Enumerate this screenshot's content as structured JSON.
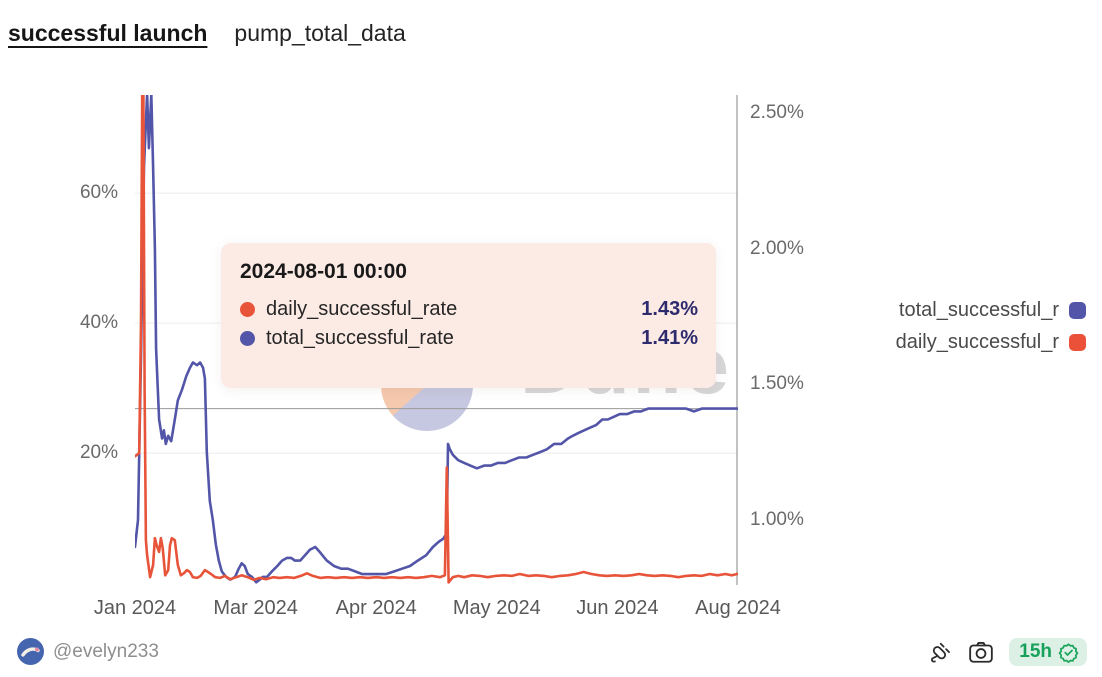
{
  "header": {
    "title": "successful launch",
    "subtitle": "pump_total_data"
  },
  "tooltip": {
    "title": "2024-08-01 00:00",
    "rows": [
      {
        "label": "daily_successful_rate",
        "value": "1.43%",
        "color": "#e8543a"
      },
      {
        "label": "total_successful_rate",
        "value": "1.41%",
        "color": "#5356a8"
      }
    ]
  },
  "legend": {
    "items": [
      {
        "label": "total_successful_r",
        "color": "#5356a8"
      },
      {
        "label": "daily_successful_r",
        "color": "#ea5138"
      }
    ]
  },
  "watermark": {
    "text": "Dune"
  },
  "footer": {
    "username": "@evelyn233",
    "timer": "15h"
  },
  "chart_data": {
    "type": "line",
    "title": "successful launch — pump_total_data",
    "x_axis": {
      "ticks": [
        {
          "t": 0.0,
          "label": "Jan 2024"
        },
        {
          "t": 0.2,
          "label": "Mar 2024"
        },
        {
          "t": 0.4,
          "label": "Apr 2024"
        },
        {
          "t": 0.6,
          "label": "May 2024"
        },
        {
          "t": 0.8,
          "label": "Jun 2024"
        },
        {
          "t": 1.0,
          "label": "Aug 2024"
        }
      ]
    },
    "axes": {
      "left": {
        "range": [
          -0.3,
          75.1
        ],
        "ticks": [
          {
            "v": 20,
            "label": "20%"
          },
          {
            "v": 40,
            "label": "40%"
          },
          {
            "v": 60,
            "label": "60%"
          }
        ],
        "gridlines": [
          20,
          40,
          60
        ]
      },
      "right": {
        "range": [
          0.76,
          2.566
        ],
        "ticks": [
          {
            "v": 2.5,
            "label": "2.50%"
          },
          {
            "v": 2.0,
            "label": "2.00%"
          },
          {
            "v": 1.5,
            "label": "1.50%"
          },
          {
            "v": 1.0,
            "label": "1.00%"
          }
        ]
      }
    },
    "crosshair": {
      "t": 1.0,
      "right_value": 1.41,
      "color": "#9a9a9a"
    },
    "grid_color": "#ececec",
    "series": [
      {
        "name": "total_successful_rate",
        "axis": "right",
        "color": "#5356a8",
        "width": 2.6,
        "points": [
          [
            0.0,
            0.9
          ],
          [
            0.005,
            1.0
          ],
          [
            0.01,
            1.6
          ],
          [
            0.015,
            2.3
          ],
          [
            0.02,
            2.57
          ],
          [
            0.023,
            2.37
          ],
          [
            0.027,
            2.57
          ],
          [
            0.03,
            2.3
          ],
          [
            0.033,
            2.0
          ],
          [
            0.035,
            1.63
          ],
          [
            0.04,
            1.37
          ],
          [
            0.045,
            1.3
          ],
          [
            0.048,
            1.33
          ],
          [
            0.051,
            1.28
          ],
          [
            0.055,
            1.31
          ],
          [
            0.06,
            1.29
          ],
          [
            0.066,
            1.37
          ],
          [
            0.071,
            1.44
          ],
          [
            0.078,
            1.48
          ],
          [
            0.085,
            1.53
          ],
          [
            0.091,
            1.56
          ],
          [
            0.096,
            1.58
          ],
          [
            0.103,
            1.57
          ],
          [
            0.108,
            1.58
          ],
          [
            0.113,
            1.56
          ],
          [
            0.116,
            1.52
          ],
          [
            0.119,
            1.25
          ],
          [
            0.124,
            1.07
          ],
          [
            0.129,
            1.0
          ],
          [
            0.134,
            0.91
          ],
          [
            0.139,
            0.85
          ],
          [
            0.144,
            0.81
          ],
          [
            0.151,
            0.79
          ],
          [
            0.158,
            0.78
          ],
          [
            0.166,
            0.79
          ],
          [
            0.172,
            0.82
          ],
          [
            0.177,
            0.84
          ],
          [
            0.182,
            0.83
          ],
          [
            0.187,
            0.8
          ],
          [
            0.194,
            0.79
          ],
          [
            0.201,
            0.77
          ],
          [
            0.207,
            0.78
          ],
          [
            0.212,
            0.79
          ],
          [
            0.219,
            0.79
          ],
          [
            0.227,
            0.81
          ],
          [
            0.236,
            0.83
          ],
          [
            0.244,
            0.85
          ],
          [
            0.252,
            0.86
          ],
          [
            0.259,
            0.86
          ],
          [
            0.265,
            0.85
          ],
          [
            0.274,
            0.85
          ],
          [
            0.282,
            0.87
          ],
          [
            0.29,
            0.89
          ],
          [
            0.299,
            0.9
          ],
          [
            0.307,
            0.88
          ],
          [
            0.318,
            0.85
          ],
          [
            0.33,
            0.83
          ],
          [
            0.342,
            0.82
          ],
          [
            0.353,
            0.82
          ],
          [
            0.365,
            0.81
          ],
          [
            0.377,
            0.8
          ],
          [
            0.39,
            0.8
          ],
          [
            0.403,
            0.8
          ],
          [
            0.416,
            0.8
          ],
          [
            0.43,
            0.81
          ],
          [
            0.443,
            0.82
          ],
          [
            0.456,
            0.83
          ],
          [
            0.469,
            0.85
          ],
          [
            0.483,
            0.87
          ],
          [
            0.494,
            0.9
          ],
          [
            0.504,
            0.92
          ],
          [
            0.511,
            0.93
          ],
          [
            0.517,
            0.95
          ],
          [
            0.519,
            1.28
          ],
          [
            0.522,
            1.26
          ],
          [
            0.527,
            1.24
          ],
          [
            0.536,
            1.22
          ],
          [
            0.546,
            1.21
          ],
          [
            0.556,
            1.2
          ],
          [
            0.567,
            1.19
          ],
          [
            0.579,
            1.2
          ],
          [
            0.59,
            1.2
          ],
          [
            0.602,
            1.21
          ],
          [
            0.614,
            1.21
          ],
          [
            0.625,
            1.22
          ],
          [
            0.637,
            1.23
          ],
          [
            0.649,
            1.23
          ],
          [
            0.66,
            1.24
          ],
          [
            0.672,
            1.25
          ],
          [
            0.683,
            1.26
          ],
          [
            0.695,
            1.28
          ],
          [
            0.707,
            1.28
          ],
          [
            0.718,
            1.3
          ],
          [
            0.726,
            1.31
          ],
          [
            0.735,
            1.32
          ],
          [
            0.745,
            1.33
          ],
          [
            0.755,
            1.34
          ],
          [
            0.765,
            1.35
          ],
          [
            0.775,
            1.37
          ],
          [
            0.784,
            1.37
          ],
          [
            0.794,
            1.38
          ],
          [
            0.804,
            1.39
          ],
          [
            0.816,
            1.39
          ],
          [
            0.828,
            1.4
          ],
          [
            0.839,
            1.4
          ],
          [
            0.851,
            1.41
          ],
          [
            0.863,
            1.41
          ],
          [
            0.874,
            1.41
          ],
          [
            0.887,
            1.41
          ],
          [
            0.901,
            1.41
          ],
          [
            0.914,
            1.41
          ],
          [
            0.927,
            1.4
          ],
          [
            0.94,
            1.41
          ],
          [
            0.954,
            1.41
          ],
          [
            0.967,
            1.41
          ],
          [
            0.98,
            1.41
          ],
          [
            1.0,
            1.41
          ]
        ]
      },
      {
        "name": "daily_successful_rate",
        "axis": "left",
        "color": "#e8543a",
        "width": 2.6,
        "points": [
          [
            0.0,
            19.5
          ],
          [
            0.007,
            20.0
          ],
          [
            0.01,
            40.0
          ],
          [
            0.012,
            75.0
          ],
          [
            0.014,
            75.0
          ],
          [
            0.016,
            30.0
          ],
          [
            0.018,
            6.6
          ],
          [
            0.02,
            4.3
          ],
          [
            0.025,
            0.9
          ],
          [
            0.03,
            2.8
          ],
          [
            0.033,
            6.9
          ],
          [
            0.036,
            5.8
          ],
          [
            0.04,
            4.8
          ],
          [
            0.043,
            6.9
          ],
          [
            0.046,
            5.4
          ],
          [
            0.05,
            1.2
          ],
          [
            0.055,
            2.0
          ],
          [
            0.058,
            5.8
          ],
          [
            0.061,
            6.9
          ],
          [
            0.066,
            6.6
          ],
          [
            0.071,
            2.8
          ],
          [
            0.076,
            1.2
          ],
          [
            0.081,
            1.5
          ],
          [
            0.086,
            2.0
          ],
          [
            0.091,
            1.7
          ],
          [
            0.096,
            0.9
          ],
          [
            0.103,
            0.8
          ],
          [
            0.109,
            1.1
          ],
          [
            0.116,
            2.0
          ],
          [
            0.121,
            1.7
          ],
          [
            0.126,
            1.4
          ],
          [
            0.133,
            0.9
          ],
          [
            0.141,
            0.8
          ],
          [
            0.149,
            1.1
          ],
          [
            0.158,
            0.6
          ],
          [
            0.168,
            0.9
          ],
          [
            0.177,
            1.2
          ],
          [
            0.187,
            0.9
          ],
          [
            0.197,
            0.5
          ],
          [
            0.207,
            0.8
          ],
          [
            0.217,
            0.6
          ],
          [
            0.229,
            0.9
          ],
          [
            0.24,
            0.8
          ],
          [
            0.252,
            0.9
          ],
          [
            0.264,
            0.8
          ],
          [
            0.275,
            1.1
          ],
          [
            0.285,
            1.5
          ],
          [
            0.295,
            1.1
          ],
          [
            0.307,
            0.8
          ],
          [
            0.32,
            0.9
          ],
          [
            0.333,
            0.8
          ],
          [
            0.347,
            0.9
          ],
          [
            0.36,
            0.8
          ],
          [
            0.373,
            0.9
          ],
          [
            0.386,
            0.8
          ],
          [
            0.4,
            0.9
          ],
          [
            0.413,
            0.8
          ],
          [
            0.426,
            0.9
          ],
          [
            0.44,
            0.8
          ],
          [
            0.453,
            0.9
          ],
          [
            0.466,
            0.8
          ],
          [
            0.479,
            0.9
          ],
          [
            0.492,
            1.1
          ],
          [
            0.506,
            0.9
          ],
          [
            0.514,
            1.2
          ],
          [
            0.517,
            17.8
          ],
          [
            0.52,
            0.1
          ],
          [
            0.527,
            0.9
          ],
          [
            0.536,
            1.1
          ],
          [
            0.546,
            0.9
          ],
          [
            0.559,
            1.2
          ],
          [
            0.572,
            1.1
          ],
          [
            0.585,
            0.9
          ],
          [
            0.598,
            1.1
          ],
          [
            0.612,
            1.2
          ],
          [
            0.625,
            1.1
          ],
          [
            0.638,
            1.4
          ],
          [
            0.652,
            1.1
          ],
          [
            0.665,
            1.2
          ],
          [
            0.678,
            1.1
          ],
          [
            0.691,
            0.9
          ],
          [
            0.705,
            1.1
          ],
          [
            0.718,
            1.2
          ],
          [
            0.731,
            1.4
          ],
          [
            0.744,
            1.7
          ],
          [
            0.757,
            1.4
          ],
          [
            0.77,
            1.2
          ],
          [
            0.783,
            1.1
          ],
          [
            0.796,
            1.2
          ],
          [
            0.81,
            1.1
          ],
          [
            0.823,
            1.2
          ],
          [
            0.836,
            1.4
          ],
          [
            0.849,
            1.2
          ],
          [
            0.862,
            1.1
          ],
          [
            0.875,
            1.2
          ],
          [
            0.888,
            1.1
          ],
          [
            0.901,
            0.9
          ],
          [
            0.914,
            1.1
          ],
          [
            0.927,
            1.2
          ],
          [
            0.94,
            1.1
          ],
          [
            0.953,
            1.4
          ],
          [
            0.966,
            1.2
          ],
          [
            0.979,
            1.4
          ],
          [
            0.99,
            1.2
          ],
          [
            1.0,
            1.43
          ]
        ]
      }
    ]
  }
}
